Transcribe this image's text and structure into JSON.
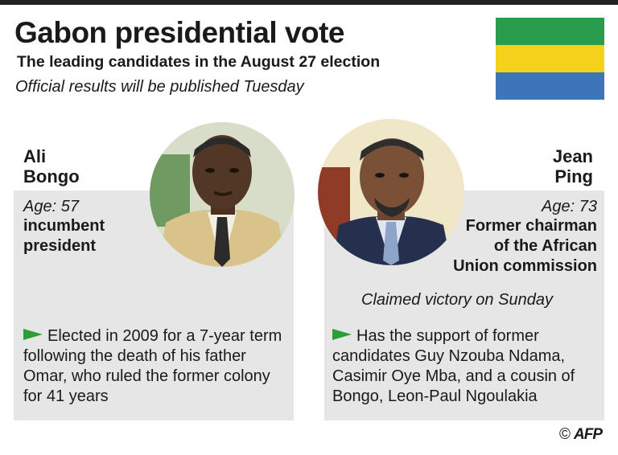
{
  "header": {
    "title": "Gabon presidential vote",
    "subtitle": "The leading candidates in the August 27 election",
    "note": "Official results will be published Tuesday"
  },
  "flag": {
    "colors": [
      "#2a9c4e",
      "#f5d11c",
      "#3e74b8"
    ]
  },
  "candidates": {
    "bongo": {
      "first_name": "Ali",
      "last_name": "Bongo",
      "age": "Age: 57",
      "role_line1": "incumbent",
      "role_line2": "president",
      "description": "Elected in 2009 for a 7-year term following the death of his father Omar, who ruled the former colony for 41 years"
    },
    "ping": {
      "first_name": "Jean",
      "last_name": "Ping",
      "age": "Age: 73",
      "role_line1": "Former chairman",
      "role_line2": "of the African",
      "role_line3": "Union commission",
      "claim": "Claimed victory on Sunday",
      "description": "Has the support of former candidates Guy Nzouba Ndama, Casimir Oye Mba, and a cousin of Bongo, Leon-Paul Ngoulakia"
    }
  },
  "credit": {
    "symbol": "©",
    "agency": "AFP"
  }
}
